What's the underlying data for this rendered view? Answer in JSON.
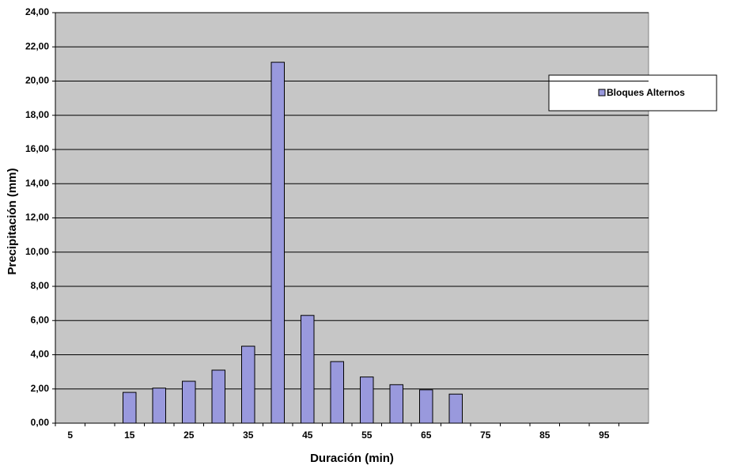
{
  "chart_data": {
    "type": "bar",
    "x_label": "Duración (min)",
    "y_label": "Precipitación (mm)",
    "categories": [
      "5",
      null,
      "15",
      null,
      "25",
      null,
      "35",
      null,
      "45",
      null,
      "55",
      null,
      "65",
      null,
      "75",
      null,
      "85",
      null,
      "95",
      null
    ],
    "series": [
      {
        "name": "Bloques Alternos",
        "color": "#9999dd",
        "values": [
          null,
          null,
          1.8,
          2.05,
          2.45,
          3.1,
          4.5,
          21.1,
          6.3,
          3.6,
          2.7,
          2.25,
          1.95,
          1.7,
          null,
          null,
          null,
          null,
          null,
          null
        ]
      }
    ],
    "ylim": [
      0,
      24
    ],
    "yticks": [
      {
        "value": 0,
        "label": "0,00"
      },
      {
        "value": 2,
        "label": "2,00"
      },
      {
        "value": 4,
        "label": "4,00"
      },
      {
        "value": 6,
        "label": "6,00"
      },
      {
        "value": 8,
        "label": "8,00"
      },
      {
        "value": 10,
        "label": "10,00"
      },
      {
        "value": 12,
        "label": "12,00"
      },
      {
        "value": 14,
        "label": "14,00"
      },
      {
        "value": 16,
        "label": "16,00"
      },
      {
        "value": 18,
        "label": "18,00"
      },
      {
        "value": 20,
        "label": "20,00"
      },
      {
        "value": 22,
        "label": "22,00"
      },
      {
        "value": 24,
        "label": "24,00"
      }
    ],
    "grid": true,
    "legend": "right"
  }
}
